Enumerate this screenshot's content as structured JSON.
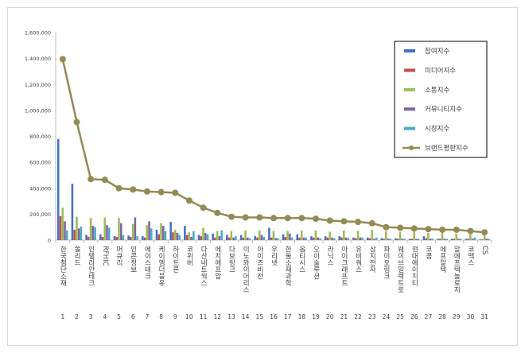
{
  "chart_data": {
    "type": "bar",
    "title": "",
    "xlabel": "",
    "ylabel": "",
    "ylim": [
      0,
      1600000
    ],
    "yticks": [
      0,
      200000,
      400000,
      600000,
      800000,
      1000000,
      1200000,
      1400000,
      1600000
    ],
    "ytick_labels": [
      "0",
      "200,000",
      "400,000",
      "600,000",
      "800,000",
      "1,000,000",
      "1,200,000",
      "1,400,000",
      "1,600,000"
    ],
    "grid": false,
    "legend_position": "right",
    "ranks": [
      "1",
      "2",
      "3",
      "4",
      "5",
      "6",
      "7",
      "8",
      "9",
      "10",
      "11",
      "12",
      "13",
      "14",
      "15",
      "16",
      "17",
      "18",
      "19",
      "20",
      "21",
      "22",
      "23",
      "24",
      "25",
      "26",
      "27",
      "28",
      "29",
      "30",
      "31"
    ],
    "categories": [
      "한국첨단소재",
      "쏠리드",
      "인텔리안테크",
      "RFHIC",
      "머큐리",
      "인콘정보",
      "에이스테크",
      "케이엠더블유",
      "하이트론",
      "코위버",
      "다산네트웍스",
      "에치에프알",
      "다보링크",
      "이노와이어리스",
      "아이즈비전",
      "우리넷",
      "한울소재과학",
      "옵티시스",
      "오이솔루션",
      "라닉스",
      "아이크래프트",
      "유비쿼스",
      "삼지전자",
      "파이오링크",
      "웨이브일렉트로",
      "현대에이치티",
      "코콤",
      "에프알텍",
      "알에프텍놀로지",
      "코맥스",
      "CS"
    ],
    "series": [
      {
        "name": "참여지수",
        "color": "#4472c4",
        "values": [
          780000,
          435000,
          40000,
          45000,
          30000,
          35000,
          30000,
          80000,
          140000,
          110000,
          40000,
          50000,
          40000,
          40000,
          30000,
          95000,
          45000,
          45000,
          30000,
          30000,
          30000,
          20000,
          20000,
          15000,
          15000,
          10000,
          30000,
          10000,
          10000,
          10000,
          5000
        ]
      },
      {
        "name": "미디어지수",
        "color": "#c0504d",
        "values": [
          185000,
          80000,
          25000,
          25000,
          25000,
          25000,
          20000,
          45000,
          60000,
          40000,
          30000,
          20000,
          20000,
          20000,
          20000,
          20000,
          25000,
          20000,
          20000,
          20000,
          20000,
          15000,
          15000,
          10000,
          10000,
          10000,
          15000,
          10000,
          10000,
          10000,
          5000
        ]
      },
      {
        "name": "소통지수",
        "color": "#9bbb59",
        "values": [
          250000,
          180000,
          170000,
          175000,
          170000,
          125000,
          115000,
          130000,
          80000,
          60000,
          95000,
          70000,
          70000,
          75000,
          75000,
          70000,
          70000,
          75000,
          75000,
          65000,
          75000,
          70000,
          80000,
          70000,
          65000,
          65000,
          55000,
          60000,
          50000,
          45000,
          45000
        ]
      },
      {
        "name": "커뮤니티지수",
        "color": "#8064a2",
        "values": [
          145000,
          90000,
          110000,
          115000,
          130000,
          175000,
          145000,
          110000,
          55000,
          25000,
          55000,
          30000,
          20000,
          20000,
          40000,
          15000,
          50000,
          20000,
          20000,
          20000,
          20000,
          20000,
          10000,
          10000,
          10000,
          10000,
          10000,
          10000,
          10000,
          10000,
          10000
        ]
      },
      {
        "name": "시장지수",
        "color": "#4bacc6",
        "values": [
          75000,
          105000,
          100000,
          95000,
          40000,
          30000,
          90000,
          70000,
          40000,
          70000,
          45000,
          75000,
          30000,
          15000,
          25000,
          15000,
          20000,
          20000,
          15000,
          15000,
          15000,
          20000,
          20000,
          10000,
          10000,
          10000,
          10000,
          10000,
          10000,
          20000,
          10000
        ]
      },
      {
        "name": "브랜드평판지수",
        "color": "#948a54",
        "line": true,
        "values": [
          1395000,
          910000,
          470000,
          465000,
          400000,
          390000,
          375000,
          370000,
          365000,
          305000,
          250000,
          210000,
          180000,
          175000,
          175000,
          170000,
          170000,
          170000,
          165000,
          150000,
          145000,
          140000,
          130000,
          100000,
          95000,
          90000,
          85000,
          80000,
          80000,
          70000,
          60000
        ]
      }
    ]
  }
}
